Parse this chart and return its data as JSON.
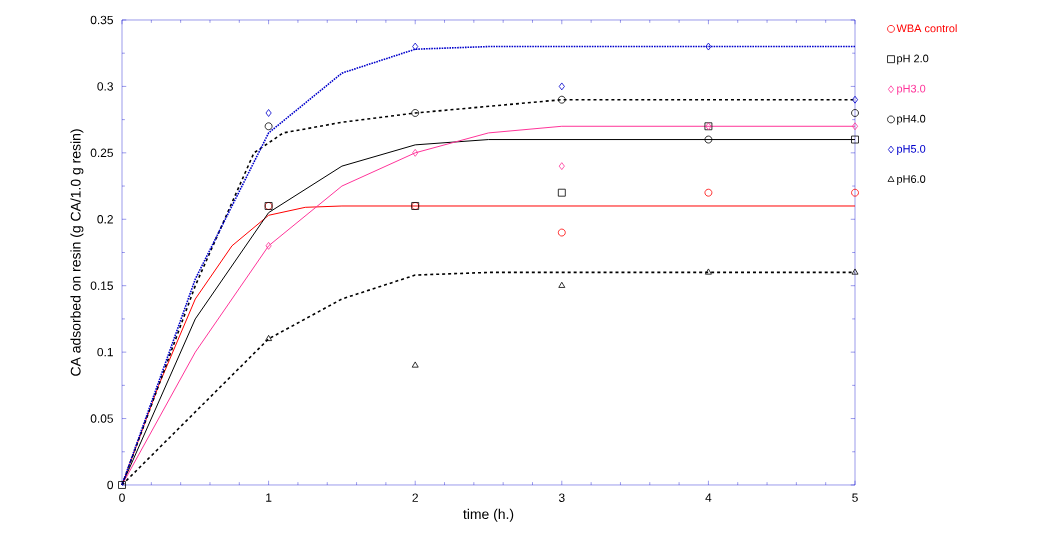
{
  "chart_data": {
    "type": "scatter",
    "xlabel": "time (h.)",
    "ylabel": "CA adsorbed on resin (g CA/1.0 g resin)",
    "x": [
      0,
      1,
      2,
      3,
      4,
      5
    ],
    "xlim": [
      0,
      5
    ],
    "ylim": [
      0,
      0.35
    ],
    "xticks": [
      0,
      1,
      2,
      3,
      4,
      5
    ],
    "yticks": [
      0,
      0.05,
      0.1,
      0.15,
      0.2,
      0.25,
      0.3,
      0.35
    ],
    "grid": false,
    "legend": "right",
    "series": [
      {
        "name": "WBA control",
        "color": "#ff0000",
        "marker": "circle",
        "values": [
          null,
          0.21,
          0.21,
          0.19,
          0.22,
          0.22
        ]
      },
      {
        "name": "pH 2.0",
        "color": "#000000",
        "marker": "square",
        "values": [
          0,
          0.21,
          0.21,
          0.22,
          0.27,
          0.26
        ]
      },
      {
        "name": "pH3.0",
        "color": "#ff3399",
        "marker": "diamond",
        "values": [
          null,
          0.18,
          0.25,
          0.24,
          0.27,
          0.27
        ]
      },
      {
        "name": "pH4.0",
        "color": "#000000",
        "marker": "circle",
        "values": [
          null,
          0.27,
          0.28,
          0.29,
          0.26,
          0.28
        ]
      },
      {
        "name": "pH5.0",
        "color": "#0000cc",
        "marker": "diamond",
        "values": [
          null,
          0.28,
          0.33,
          0.3,
          0.33,
          0.29
        ]
      },
      {
        "name": "pH6.0",
        "color": "#000000",
        "marker": "triangle",
        "values": [
          null,
          0.11,
          0.09,
          0.15,
          0.16,
          0.16
        ]
      },
      {
        "type": "line",
        "color": "#ff0000",
        "line_style": "solid",
        "marker": "none",
        "x": [
          0,
          0.25,
          0.5,
          0.75,
          1,
          1.25,
          1.5,
          5
        ],
        "values": [
          0,
          0.075,
          0.14,
          0.18,
          0.203,
          0.209,
          0.21,
          0.21
        ]
      },
      {
        "type": "line",
        "color": "#000000",
        "line_style": "solid",
        "marker": "none",
        "x": [
          0,
          0.5,
          1,
          1.5,
          2,
          2.5,
          5
        ],
        "values": [
          0,
          0.125,
          0.205,
          0.24,
          0.256,
          0.26,
          0.26
        ]
      },
      {
        "type": "line",
        "color": "#ff3399",
        "line_style": "solid",
        "marker": "none",
        "x": [
          0,
          0.5,
          1,
          1.5,
          2,
          2.5,
          3,
          5
        ],
        "values": [
          0,
          0.1,
          0.18,
          0.225,
          0.25,
          0.265,
          0.27,
          0.27
        ]
      },
      {
        "type": "line",
        "color": "#000000",
        "line_style": "dashed",
        "marker": "none",
        "x": [
          0,
          0.5,
          0.9,
          1.1,
          1.5,
          2,
          3,
          5
        ],
        "values": [
          0,
          0.15,
          0.25,
          0.265,
          0.273,
          0.28,
          0.29,
          0.29
        ]
      },
      {
        "type": "line",
        "color": "#0000cc",
        "line_style": "dotted",
        "marker": "none",
        "x": [
          0,
          0.5,
          1,
          1.5,
          2,
          2.5,
          5
        ],
        "values": [
          0,
          0.155,
          0.265,
          0.31,
          0.328,
          0.33,
          0.33
        ]
      },
      {
        "type": "line",
        "color": "#000000",
        "line_style": "dashed",
        "marker": "none",
        "x": [
          0,
          0.5,
          1,
          1.5,
          2,
          2.5,
          5
        ],
        "values": [
          0,
          0.055,
          0.11,
          0.14,
          0.158,
          0.16,
          0.16
        ]
      }
    ]
  }
}
